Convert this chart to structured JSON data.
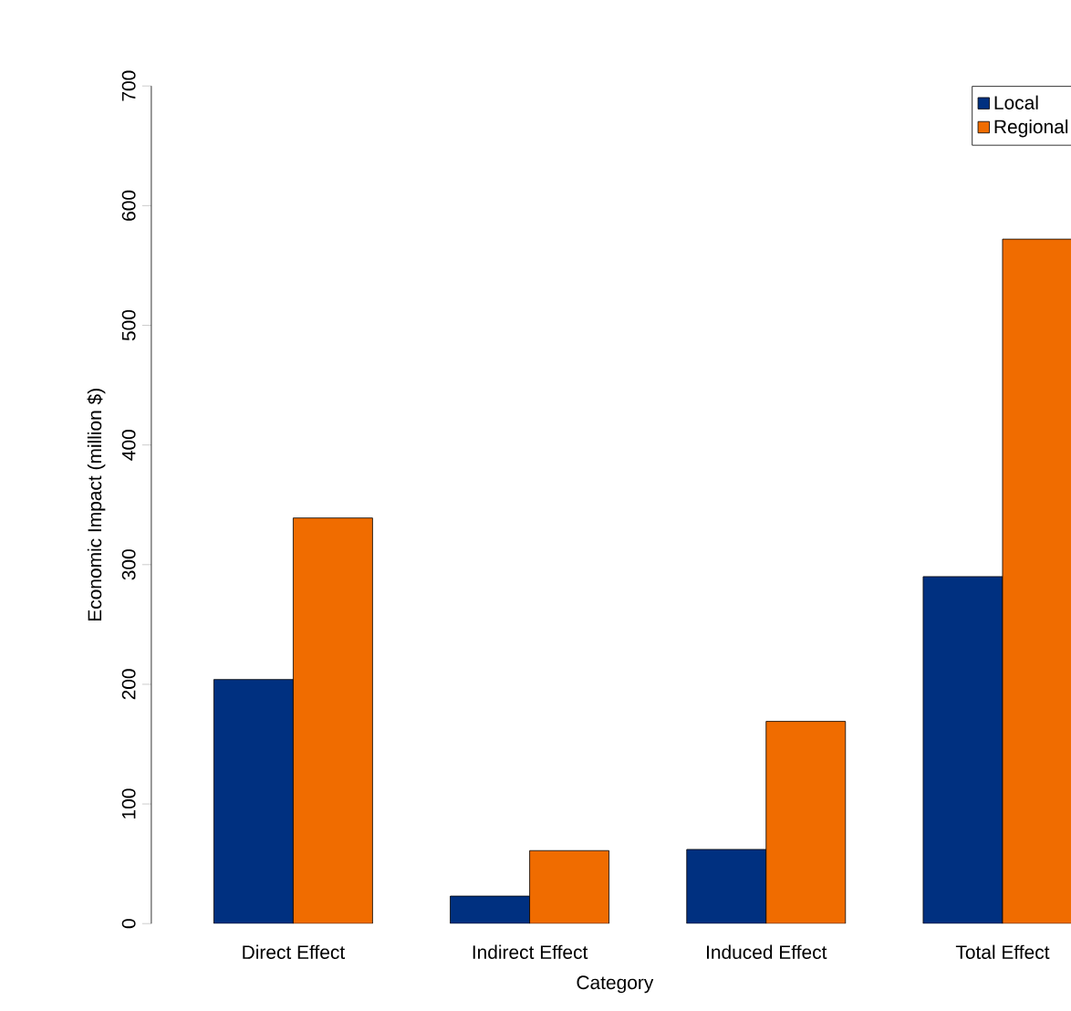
{
  "chart_data": {
    "type": "bar",
    "xlabel": "Category",
    "ylabel": "Economic Impact (million $)",
    "categories": [
      "Direct Effect",
      "Indirect Effect",
      "Induced Effect",
      "Total Effect"
    ],
    "series": [
      {
        "name": "Local",
        "color": "#003080",
        "values": [
          204,
          23,
          62,
          290
        ]
      },
      {
        "name": "Regional",
        "color": "#f06c00",
        "values": [
          339,
          61,
          169,
          572
        ]
      }
    ],
    "ylim": [
      0,
      700
    ],
    "yticks": [
      0,
      100,
      200,
      300,
      400,
      500,
      600,
      700
    ],
    "grid": false,
    "legend": "top right"
  }
}
